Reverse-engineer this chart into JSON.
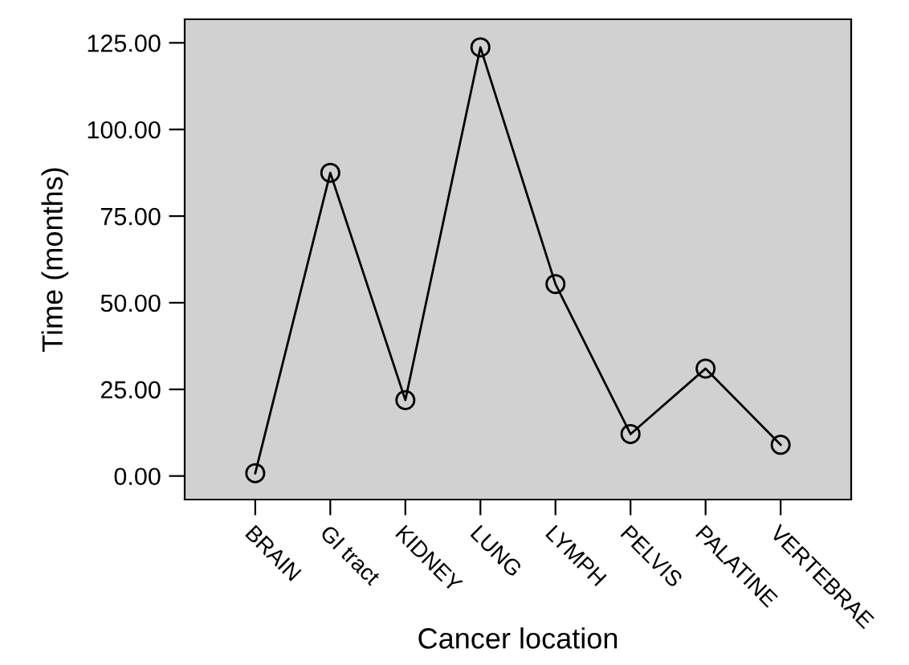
{
  "chart_data": {
    "type": "line",
    "xlabel": "Cancer location",
    "ylabel": "Time (months)",
    "categories": [
      "BRAIN",
      "GI tract",
      "KIDNEY",
      "LUNG",
      "LYMPH",
      "PELVIS",
      "PALATINE",
      "VERTEBRAE"
    ],
    "values": [
      0.8,
      87.5,
      21.9,
      123.7,
      55.4,
      12.1,
      31.0,
      9.0
    ],
    "color": "#000000",
    "marker": "circle",
    "line_style": "solid",
    "grid": false,
    "legend": false,
    "ylim": [
      -6.8,
      131.8
    ],
    "yticks": [
      {
        "value": 0,
        "label": "0.00"
      },
      {
        "value": 25,
        "label": "25.00"
      },
      {
        "value": 50,
        "label": "50.00"
      },
      {
        "value": 75,
        "label": "75.00"
      },
      {
        "value": 100,
        "label": "100.00"
      },
      {
        "value": 125,
        "label": "125.00"
      }
    ]
  }
}
